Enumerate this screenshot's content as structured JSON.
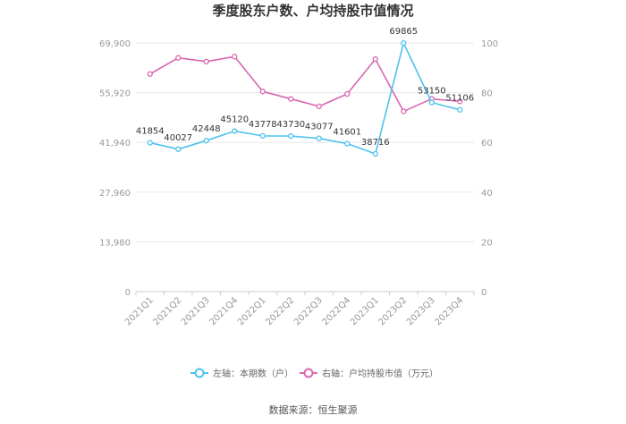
{
  "chart_data": {
    "type": "line",
    "title": "季度股东户数、户均持股市值情况",
    "categories": [
      "2021Q1",
      "2021Q2",
      "2021Q3",
      "2021Q4",
      "2022Q1",
      "2022Q2",
      "2022Q3",
      "2022Q4",
      "2023Q1",
      "2023Q2",
      "2023Q3",
      "2023Q4"
    ],
    "y_left": {
      "ticks": [
        "0",
        "13,980",
        "27,960",
        "41,940",
        "55,920",
        "69,900"
      ],
      "range": [
        0,
        69900
      ]
    },
    "y_right": {
      "ticks": [
        "0",
        "20",
        "40",
        "60",
        "80",
        "100"
      ],
      "range": [
        0,
        100
      ]
    },
    "series": [
      {
        "name": "左轴：本期数（户）",
        "axis": "left",
        "color": "#4fc3ee",
        "values": [
          41854,
          40027,
          42448,
          45120,
          43778,
          43730,
          43077,
          41601,
          38716,
          69865,
          53150,
          51106
        ],
        "labels": [
          "41854",
          "40027",
          "42448",
          "45120",
          "43778",
          "43730",
          "43077",
          "41601",
          "38716",
          "69865",
          "53150",
          "51106"
        ]
      },
      {
        "name": "右轴：户均持股市值（万元）",
        "axis": "right",
        "color": "#d966b0",
        "values": [
          87.5,
          94,
          92.5,
          94.5,
          80.5,
          77.5,
          74.5,
          79.5,
          93.5,
          72.5,
          77.5,
          76.5
        ]
      }
    ],
    "grid": true,
    "legend_position": "bottom"
  },
  "source_text": "数据来源：恒生聚源"
}
